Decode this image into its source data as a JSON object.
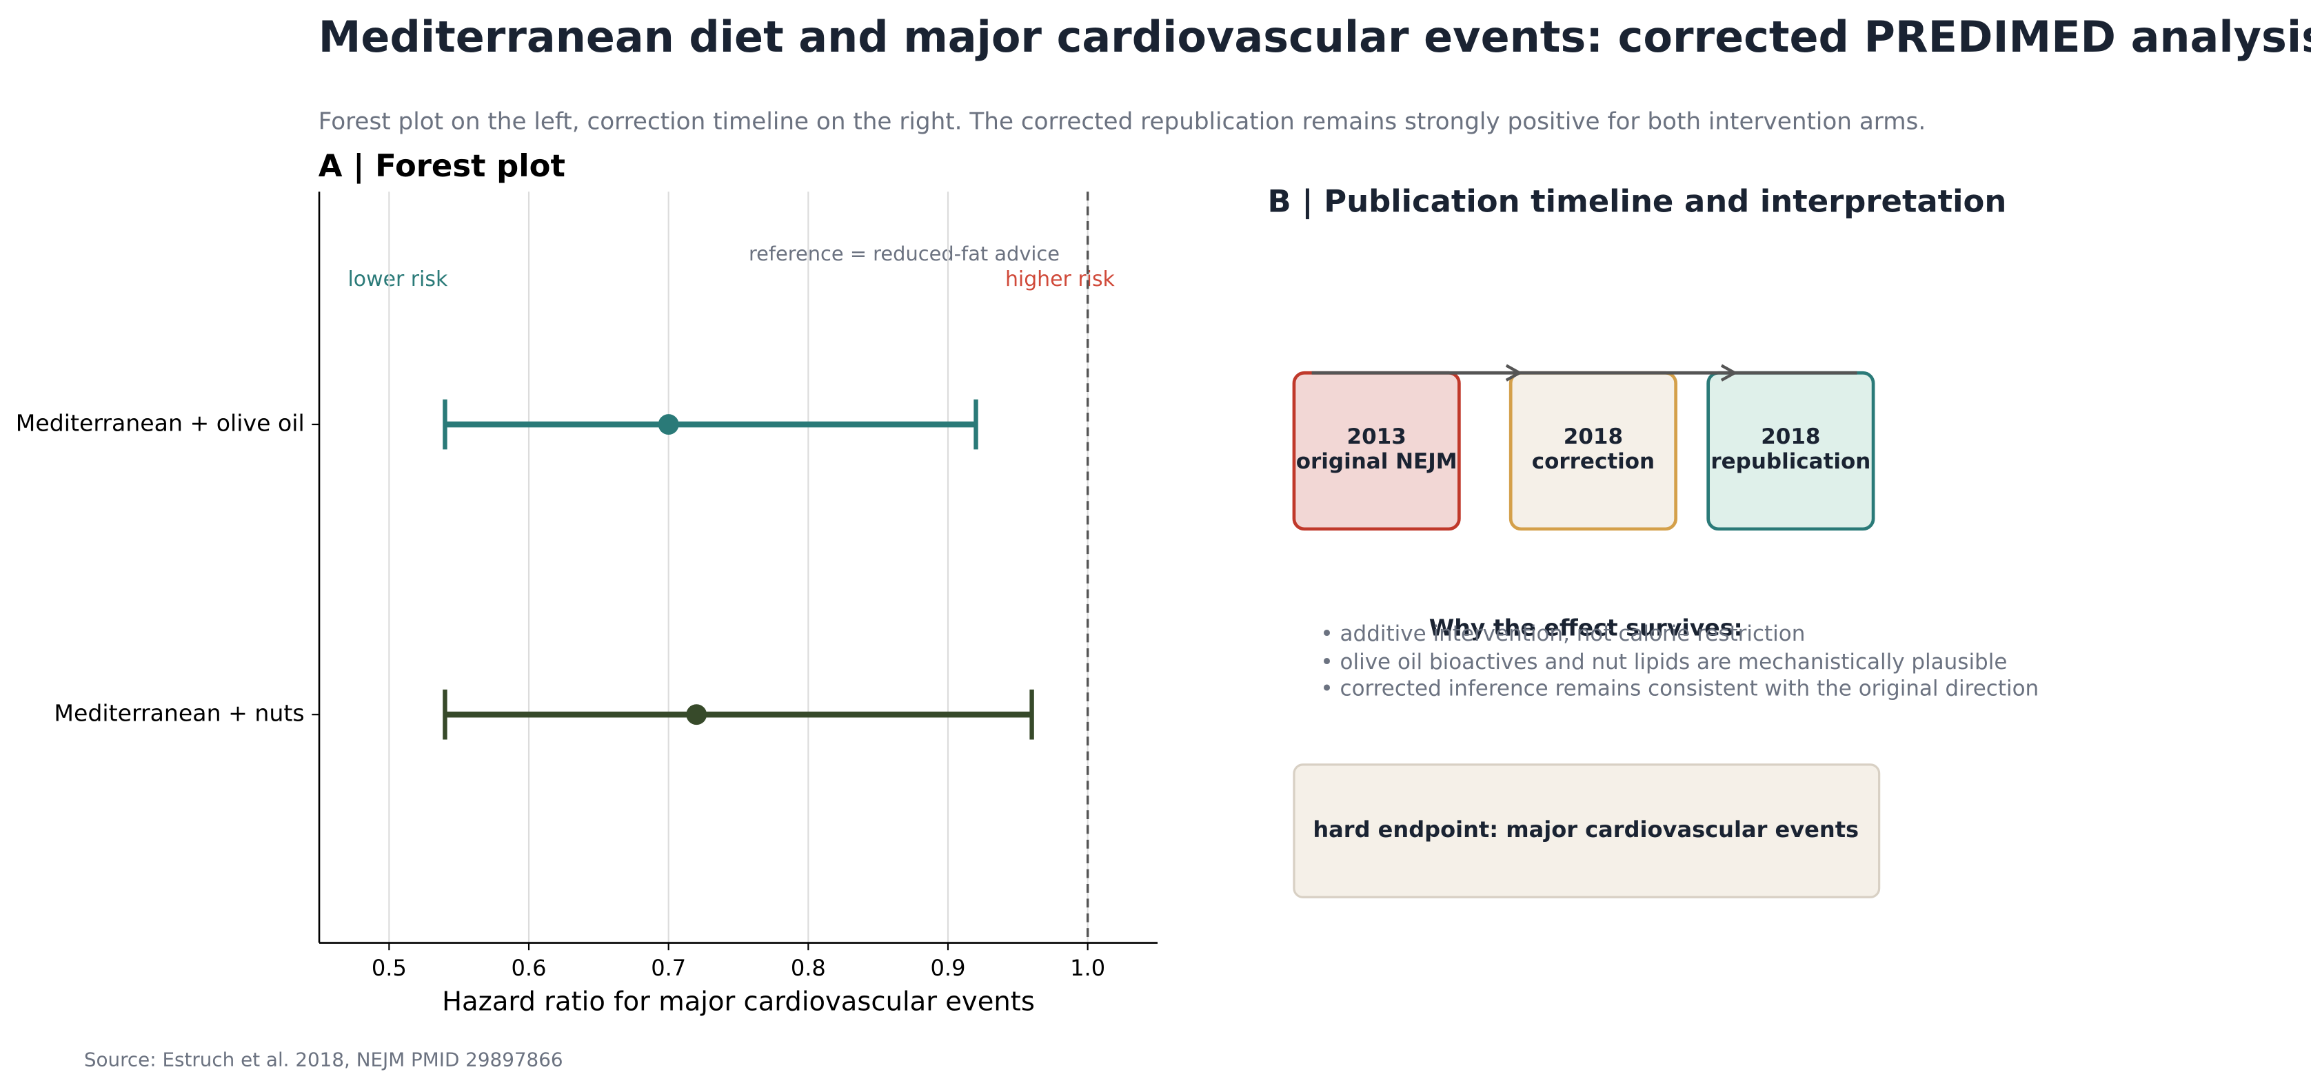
{
  "chart_data": {
    "type": "forest",
    "title": "Mediterranean diet and major cardiovascular events: corrected PREDIMED analysis",
    "subtitle": "Forest plot on the left, correction timeline on the right. The corrected republication remains strongly positive for both intervention arms.",
    "panel_title": "A  |  Forest plot",
    "xlabel": "Hazard ratio for major cardiovascular events",
    "categories": [
      "Mediterranean + olive oil",
      "Mediterranean + nuts"
    ],
    "values": [
      0.7,
      0.72
    ],
    "ci_low": [
      0.54,
      0.54
    ],
    "ci_high": [
      0.92,
      0.96
    ],
    "colors": [
      "#2a7a78",
      "#374a2a"
    ],
    "xlim": [
      0.45,
      1.05
    ],
    "xticks": [
      0.5,
      0.6,
      0.7,
      0.8,
      0.9,
      {
        "value": 1,
        "label": "1.0"
      }
    ],
    "grid": true,
    "reference_line": 1,
    "reference_label": "reference = reduced-fat advice",
    "lower_label": "lower risk",
    "higher_label": "higher risk",
    "source": "Source: Estruch et al. 2018, NEJM PMID 29897866"
  },
  "panel_b": {
    "title": "B  |  Publication timeline and interpretation",
    "timeline": [
      {
        "year": "2013",
        "label": "original NEJM"
      },
      {
        "year": "2018",
        "label": "correction"
      },
      {
        "year": "2018",
        "label": "republication"
      }
    ],
    "notes_title": "Why the effect survives:",
    "notes": [
      "• additive intervention, not calorie restriction",
      "• olive oil bioactives and nut lipids are mechanistically plausible",
      "• corrected inference remains consistent with the original direction"
    ],
    "endpoint": "hard endpoint: major cardiovascular events"
  }
}
